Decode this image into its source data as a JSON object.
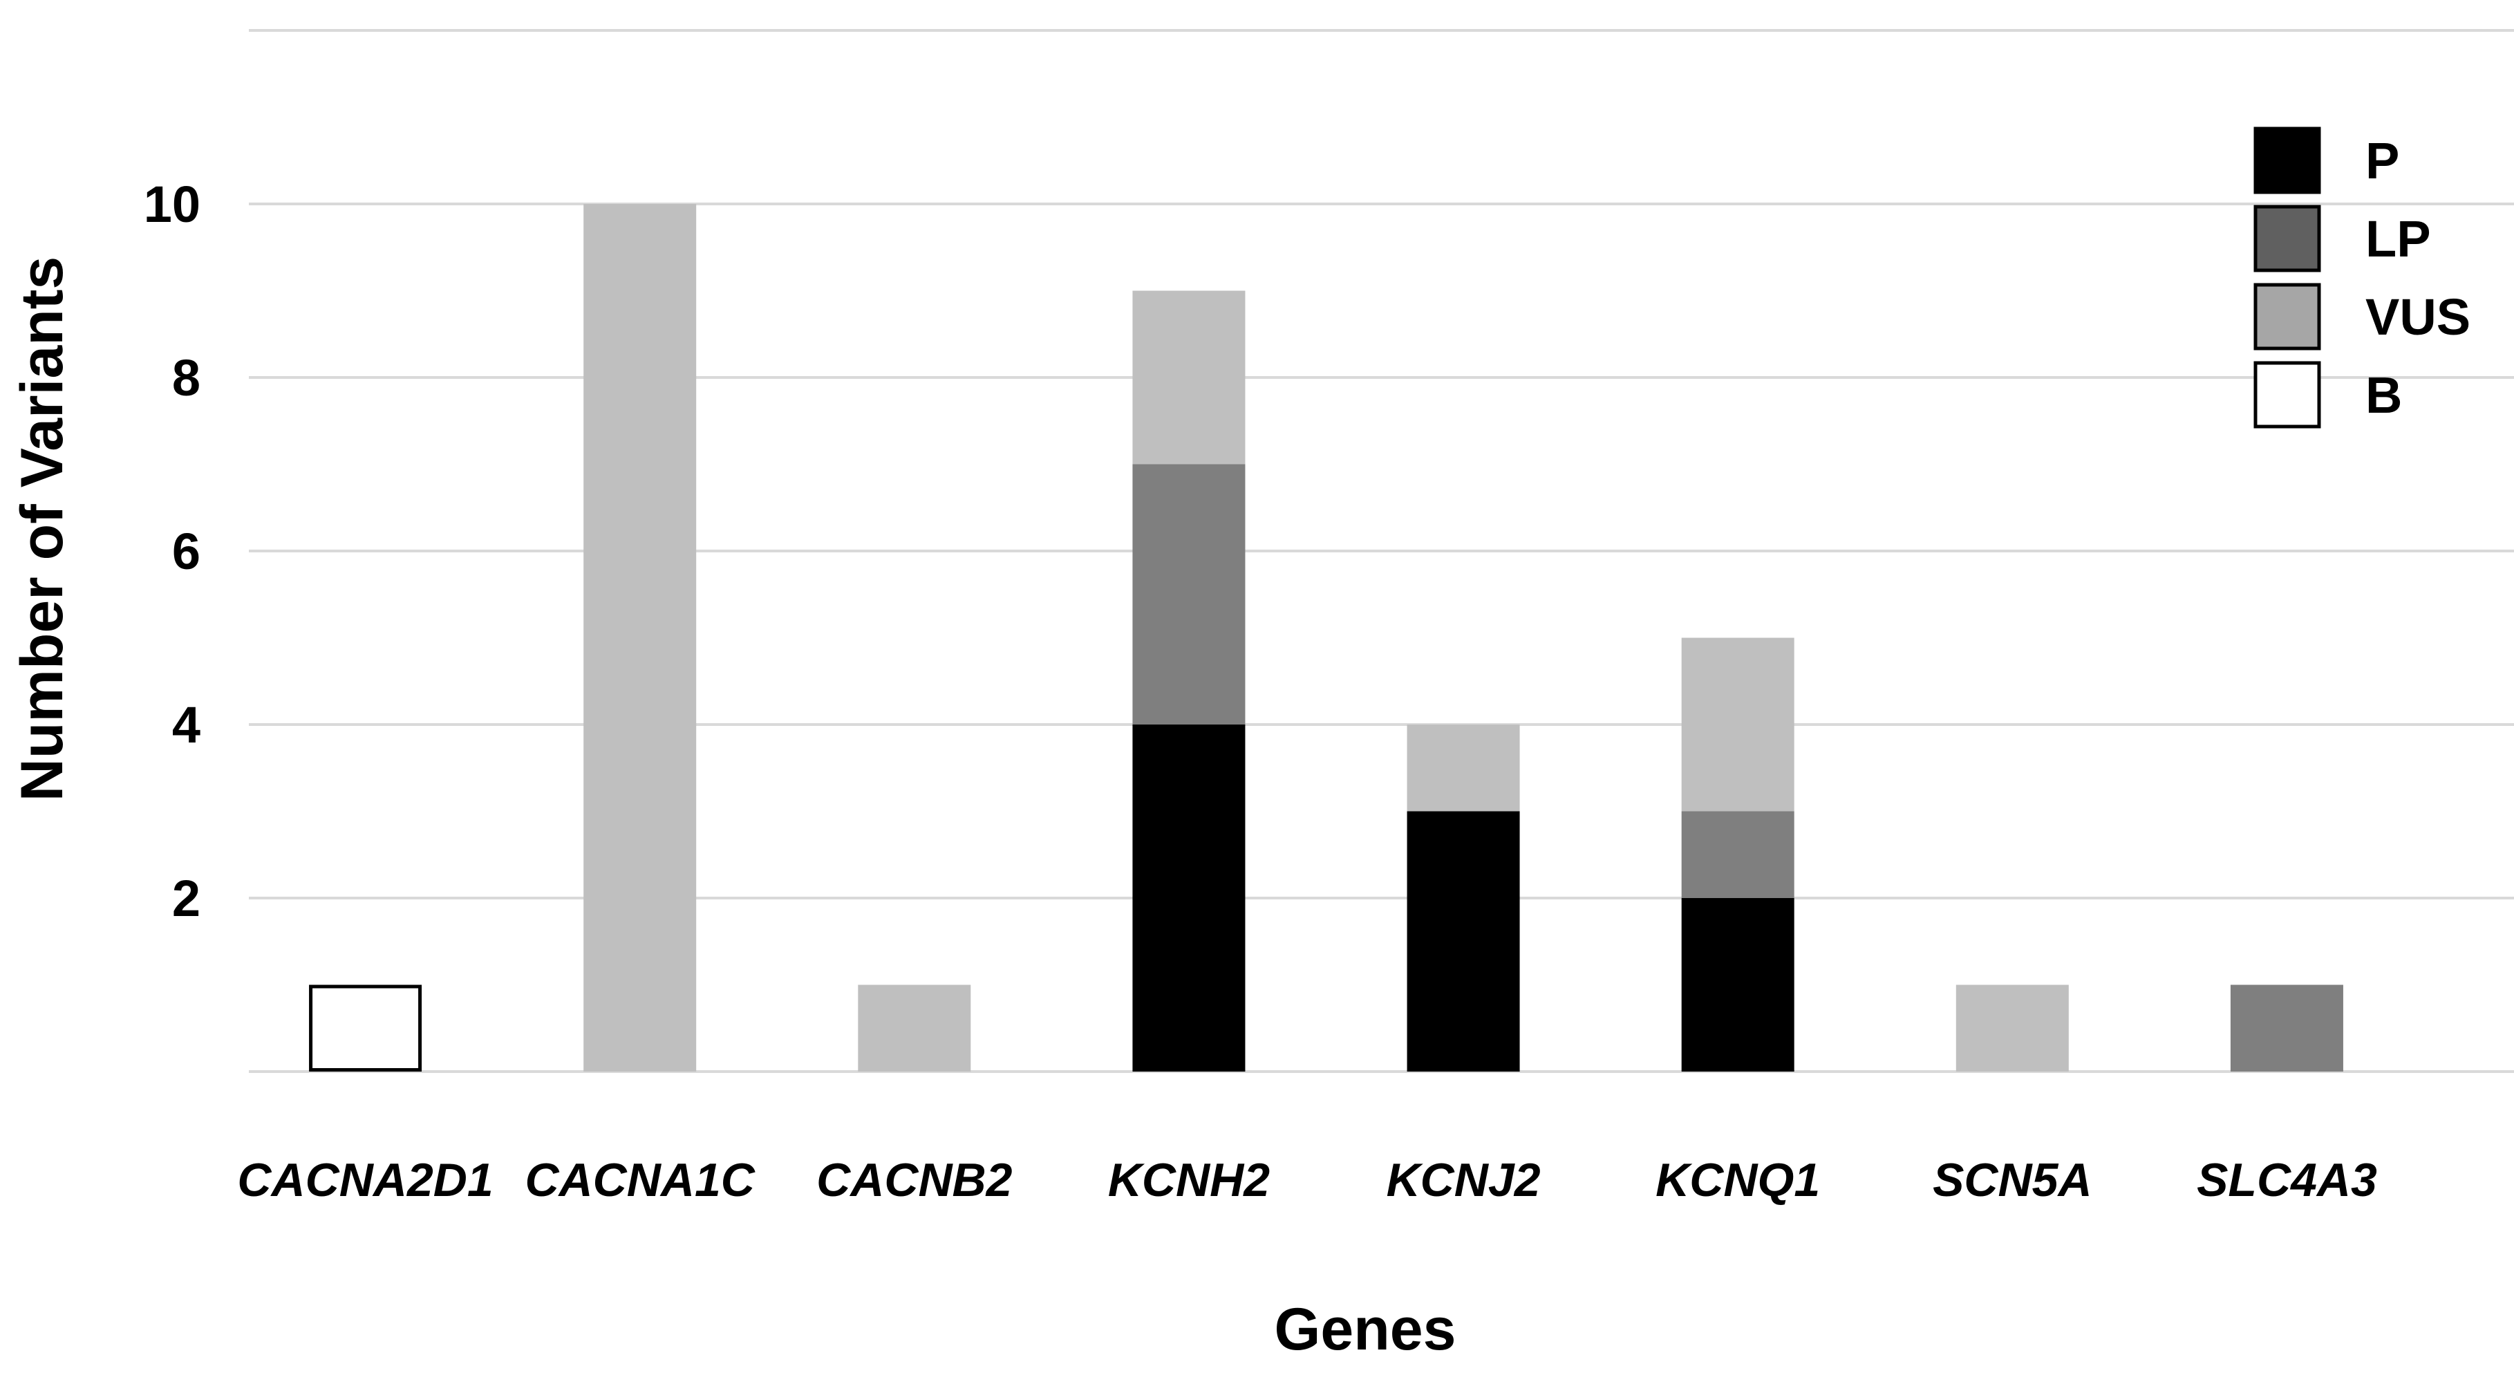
{
  "chart_data": {
    "type": "bar",
    "stacked": true,
    "categories": [
      "CACNA2D1",
      "CACNA1C",
      "CACNB2",
      "KCNH2",
      "KCNJ2",
      "KCNQ1",
      "SCN5A",
      "SLC4A3"
    ],
    "series": [
      {
        "name": "P",
        "color": "#000000",
        "values": [
          0,
          0,
          0,
          4,
          3,
          2,
          0,
          0
        ]
      },
      {
        "name": "LP",
        "color": "#7f7f7f",
        "values": [
          0,
          0,
          0,
          3,
          0,
          1,
          0,
          1
        ]
      },
      {
        "name": "VUS",
        "color": "#bfbfbf",
        "values": [
          0,
          10,
          1,
          2,
          1,
          2,
          1,
          0
        ]
      },
      {
        "name": "B",
        "color": "#ffffff",
        "outline": "#000000",
        "values": [
          1,
          0,
          0,
          0,
          0,
          0,
          0,
          0
        ]
      }
    ],
    "legend": [
      {
        "label": "P",
        "color": "#000000"
      },
      {
        "label": "LP",
        "color": "#606060"
      },
      {
        "label": "VUS",
        "color": "#a6a6a6"
      },
      {
        "label": "B",
        "color": "#ffffff"
      }
    ],
    "title": "",
    "xlabel": "Genes",
    "ylabel": "Number of Variants",
    "yticks": [
      2,
      4,
      6,
      8,
      10
    ],
    "ylim": [
      0,
      12
    ],
    "grid": true,
    "legend_position": "top-right"
  }
}
